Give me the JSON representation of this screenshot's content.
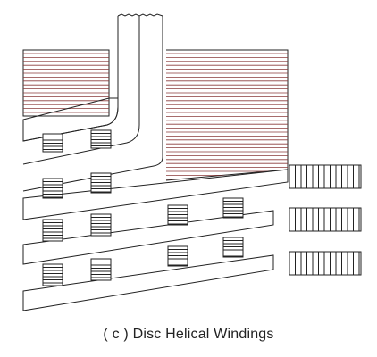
{
  "figure": {
    "caption": "( c ) Disc Helical Windings",
    "colors": {
      "outline": "#222222",
      "hatch_lines": "#8a3a3a",
      "spacer_lines": "#222222",
      "background": "#ffffff"
    }
  }
}
